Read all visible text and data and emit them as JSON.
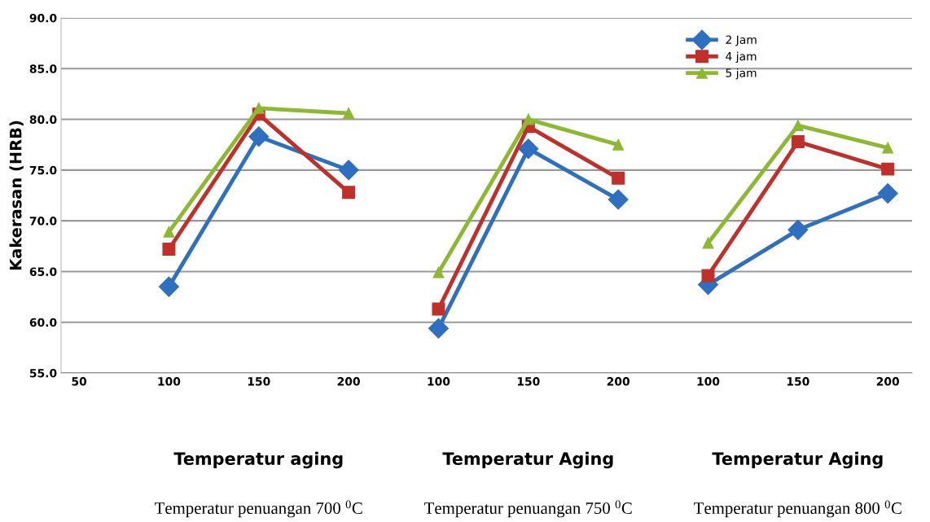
{
  "chart_data": {
    "type": "line",
    "categories": [
      "50",
      "100",
      "150",
      "200",
      "100",
      "150",
      "200",
      "100",
      "150",
      "200"
    ],
    "ylabel": "Kakerasan (HRB)",
    "ylim": [
      55,
      90
    ],
    "yticks": [
      {
        "value": 55,
        "label": "55.0"
      },
      {
        "value": 60,
        "label": "60.0"
      },
      {
        "value": 65,
        "label": "65.0"
      },
      {
        "value": 70,
        "label": "70.0"
      },
      {
        "value": 75,
        "label": "75.0"
      },
      {
        "value": 80,
        "label": "80.0"
      },
      {
        "value": 85,
        "label": "85.0"
      },
      {
        "value": 90,
        "label": "90.0"
      }
    ],
    "grid": "y",
    "legend": "top right",
    "series": [
      {
        "name": "2 Jam",
        "color": "#2e6fc0",
        "marker": "diamond",
        "values": [
          null,
          63.5,
          78.3,
          75.0,
          null,
          null,
          null,
          null,
          null,
          null
        ]
      },
      {
        "name": "4 jam",
        "color": "#c0302a",
        "marker": "square",
        "values": [
          null,
          67.2,
          80.5,
          72.8,
          null,
          null,
          null,
          null,
          null,
          null
        ]
      },
      {
        "name": "5 jam",
        "color": "#8db832",
        "marker": "triangle",
        "values": [
          null,
          68.9,
          81.1,
          80.6,
          null,
          null,
          null,
          null,
          null,
          null
        ]
      },
      {
        "color": "#2e6fc0",
        "marker": "diamond",
        "values": [
          null,
          null,
          null,
          null,
          59.4,
          77.1,
          72.1,
          null,
          null,
          null
        ]
      },
      {
        "color": "#c0302a",
        "marker": "square",
        "values": [
          null,
          null,
          null,
          null,
          61.3,
          79.3,
          74.2,
          null,
          null,
          null
        ]
      },
      {
        "color": "#8db832",
        "marker": "triangle",
        "values": [
          null,
          null,
          null,
          null,
          64.9,
          80.0,
          77.5,
          null,
          null,
          null
        ]
      },
      {
        "color": "#2e6fc0",
        "marker": "diamond",
        "values": [
          null,
          null,
          null,
          null,
          null,
          null,
          null,
          63.7,
          69.1,
          72.7
        ]
      },
      {
        "color": "#c0302a",
        "marker": "square",
        "values": [
          null,
          null,
          null,
          null,
          null,
          null,
          null,
          64.6,
          77.8,
          75.1
        ]
      },
      {
        "color": "#8db832",
        "marker": "triangle",
        "values": [
          null,
          null,
          null,
          null,
          null,
          null,
          null,
          67.8,
          79.4,
          77.2
        ]
      }
    ],
    "annotations": [
      "Temperatur aging",
      "Temperatur Aging",
      "Temperatur Aging",
      "Temperatur penuangan 700 $^{0}$C",
      "Temperatur penuangan 750 $^{0}$C",
      "Temperatur penuangan 800 $^{0}$C"
    ]
  }
}
